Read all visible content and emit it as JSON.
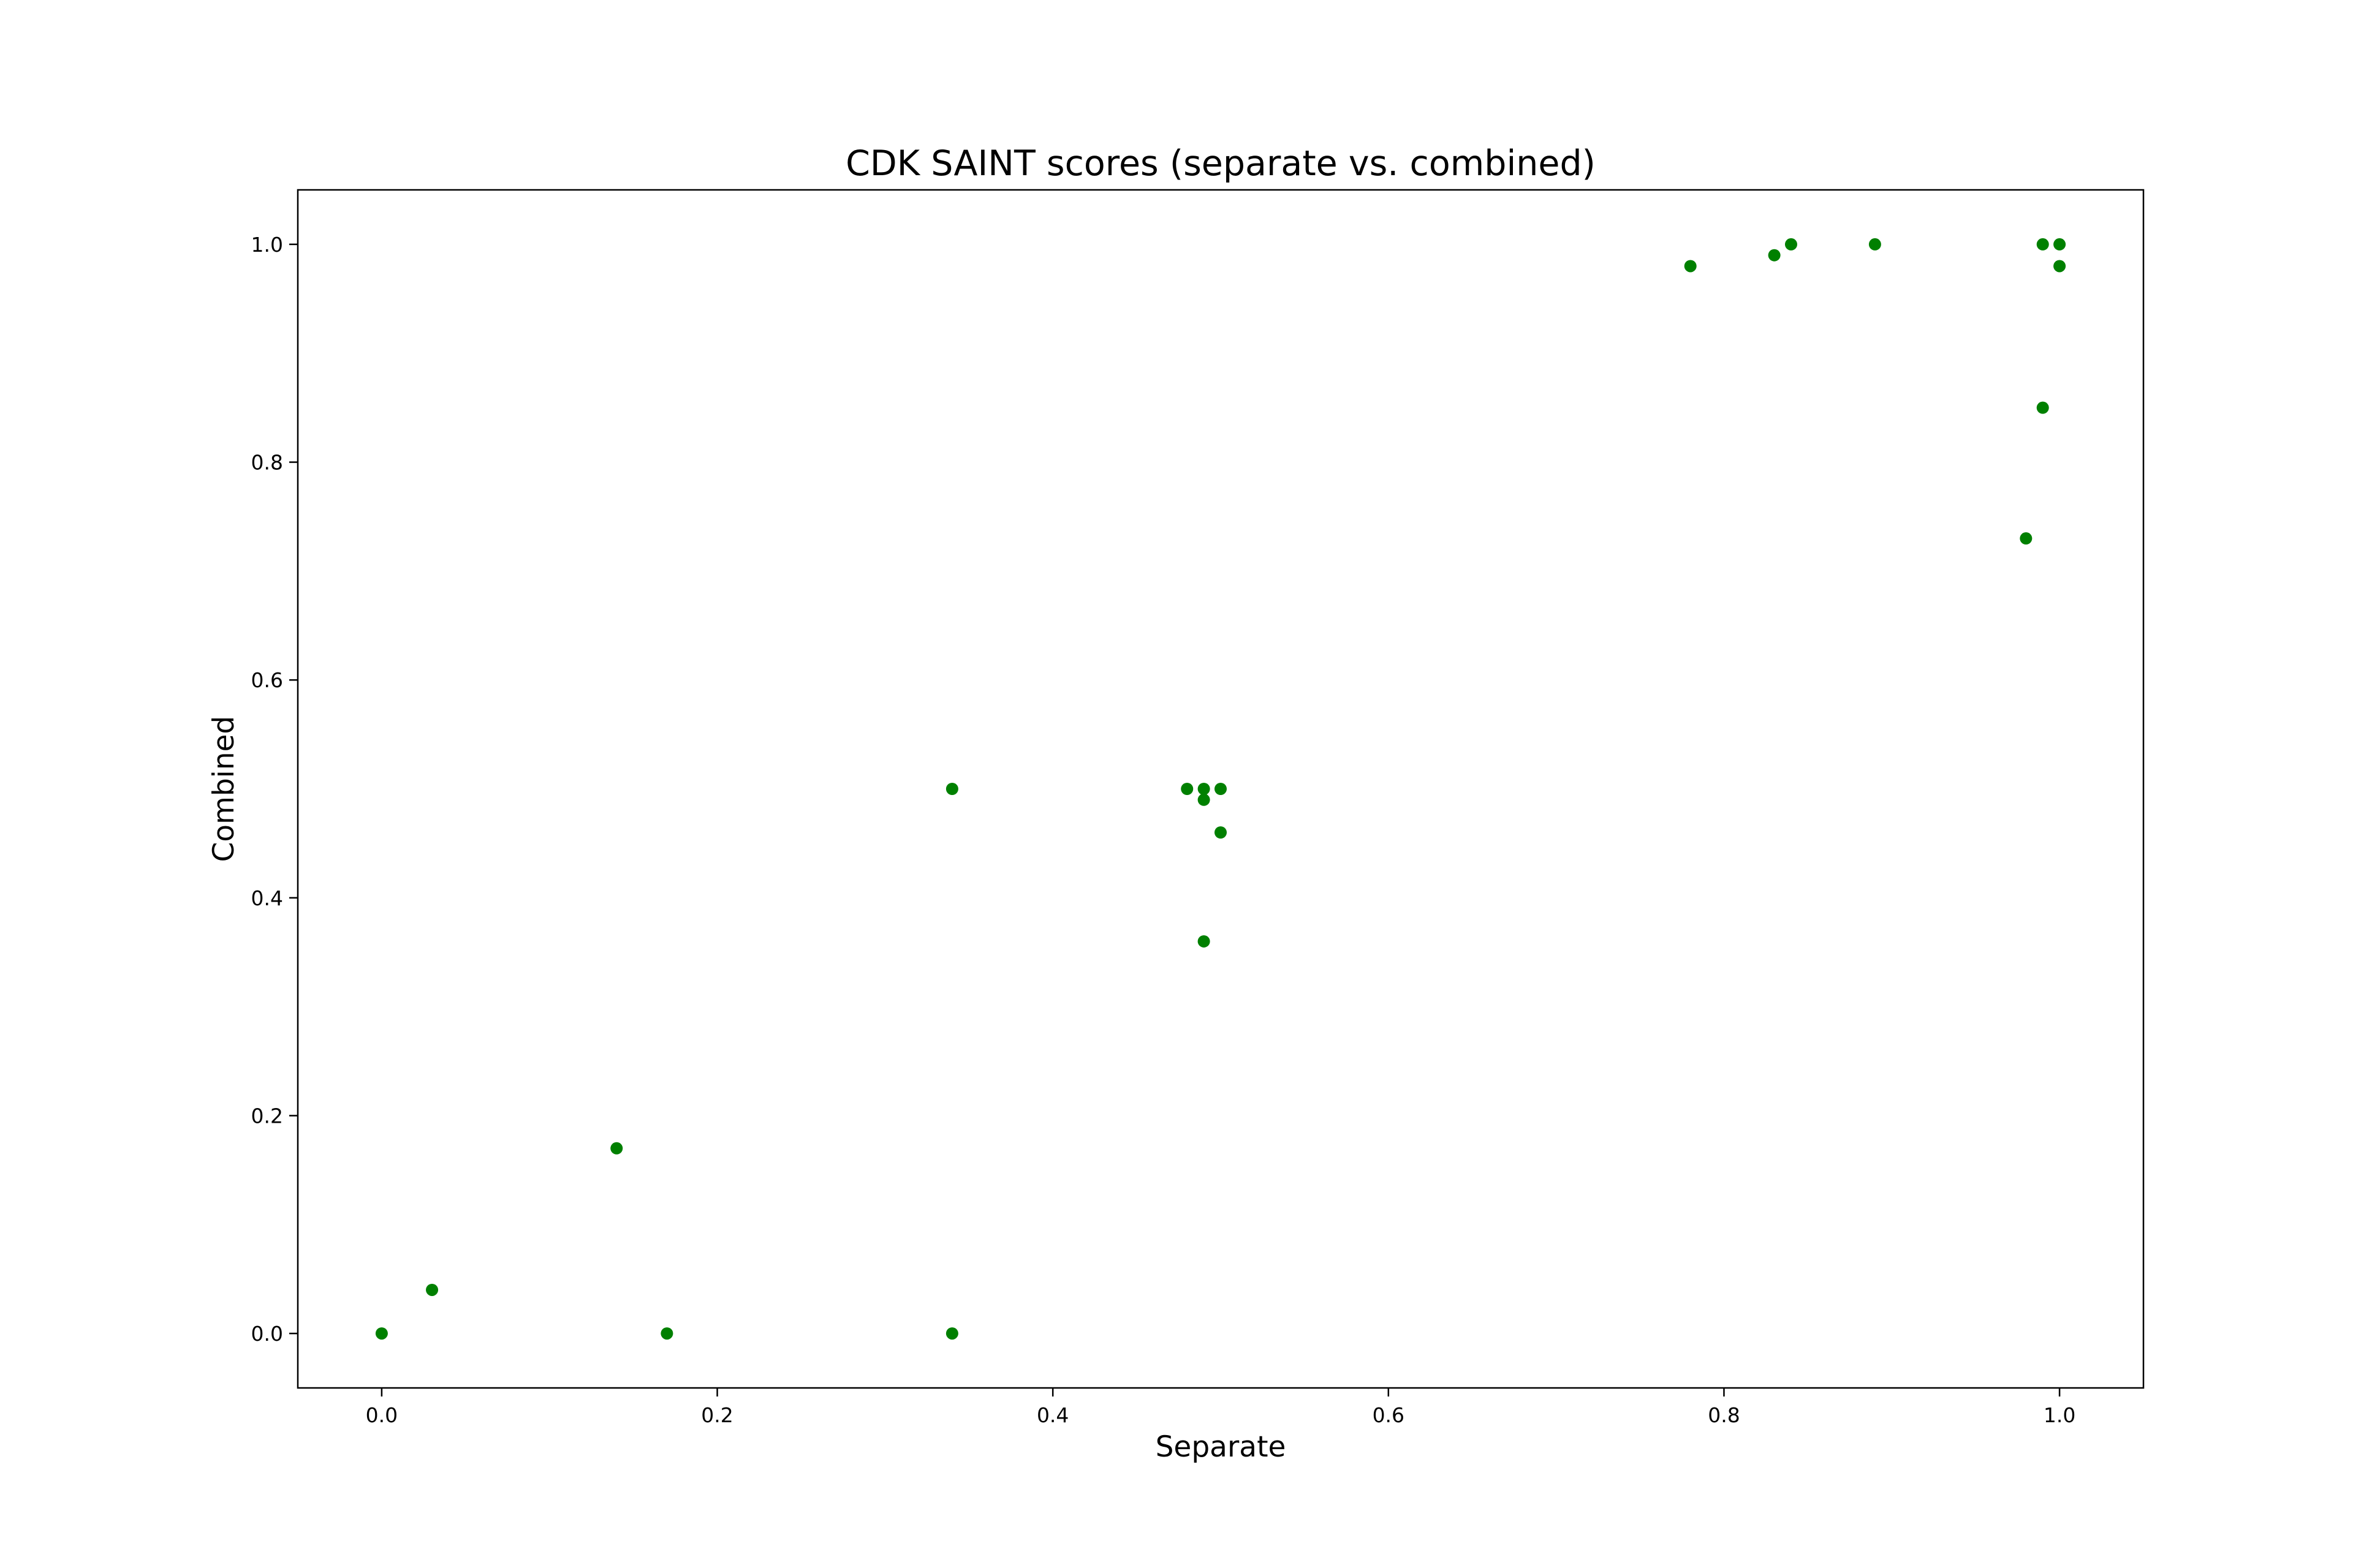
{
  "chart_data": {
    "type": "scatter",
    "title": "CDK SAINT scores (separate vs. combined)",
    "xlabel": "Separate",
    "ylabel": "Combined",
    "xlim": [
      -0.05,
      1.05
    ],
    "ylim": [
      -0.05,
      1.05
    ],
    "x_ticks": [
      0.0,
      0.2,
      0.4,
      0.6,
      0.8,
      1.0
    ],
    "y_ticks": [
      0.0,
      0.2,
      0.4,
      0.6,
      0.8,
      1.0
    ],
    "x_tick_labels": [
      "0.0",
      "0.2",
      "0.4",
      "0.6",
      "0.8",
      "1.0"
    ],
    "y_tick_labels": [
      "0.0",
      "0.2",
      "0.4",
      "0.6",
      "0.8",
      "1.0"
    ],
    "grid": false,
    "legend": "none",
    "marker_color": "#008000",
    "points": [
      {
        "x": 0.0,
        "y": 0.0
      },
      {
        "x": 0.03,
        "y": 0.04
      },
      {
        "x": 0.14,
        "y": 0.17
      },
      {
        "x": 0.17,
        "y": 0.0
      },
      {
        "x": 0.34,
        "y": 0.0
      },
      {
        "x": 0.34,
        "y": 0.5
      },
      {
        "x": 0.48,
        "y": 0.5
      },
      {
        "x": 0.49,
        "y": 0.5
      },
      {
        "x": 0.49,
        "y": 0.49
      },
      {
        "x": 0.5,
        "y": 0.5
      },
      {
        "x": 0.5,
        "y": 0.46
      },
      {
        "x": 0.49,
        "y": 0.36
      },
      {
        "x": 0.78,
        "y": 0.98
      },
      {
        "x": 0.83,
        "y": 0.99
      },
      {
        "x": 0.84,
        "y": 1.0
      },
      {
        "x": 0.89,
        "y": 1.0
      },
      {
        "x": 0.99,
        "y": 1.0
      },
      {
        "x": 1.0,
        "y": 1.0
      },
      {
        "x": 1.0,
        "y": 0.98
      },
      {
        "x": 0.99,
        "y": 0.85
      },
      {
        "x": 0.98,
        "y": 0.73
      }
    ]
  }
}
